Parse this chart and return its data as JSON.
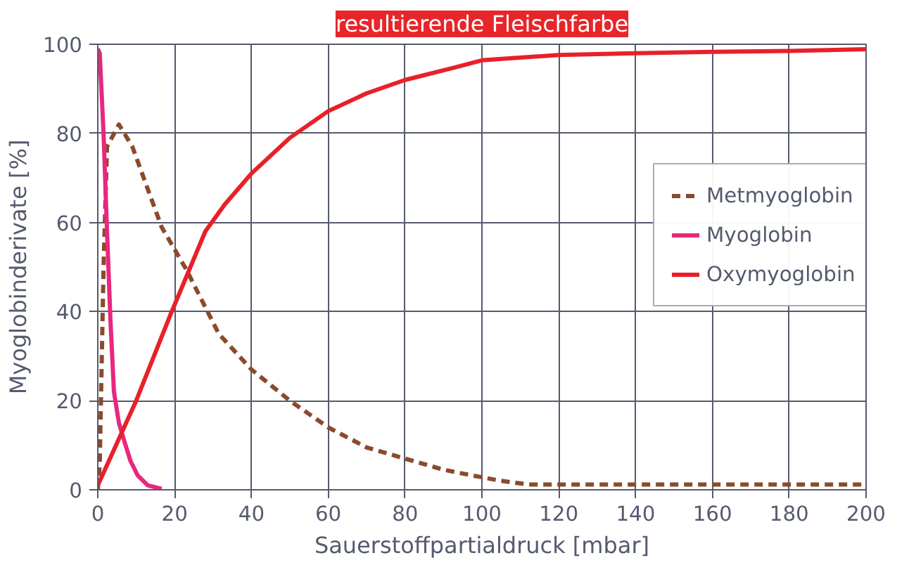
{
  "chart_data": {
    "type": "line",
    "title": "resultierende Fleischfarbe",
    "xlabel": "Sauerstoffpartialdruck [mbar]",
    "ylabel": "Myoglobinderivate [%]",
    "xlim": [
      0,
      200
    ],
    "ylim": [
      0,
      100
    ],
    "xticks": [
      0,
      20,
      40,
      60,
      80,
      100,
      120,
      140,
      160,
      180,
      200
    ],
    "yticks": [
      0,
      20,
      40,
      60,
      80,
      100
    ],
    "grid": true,
    "legend": "right",
    "series": [
      {
        "name": "Metmyoglobin",
        "color": "#8b4a2b",
        "line_style": "dashed",
        "x": [
          0,
          0.5,
          1.5,
          2.4,
          5.5,
          9,
          16.6,
          23,
          31.5,
          40,
          50,
          60,
          70,
          80,
          90,
          97,
          105,
          112,
          130,
          160,
          200
        ],
        "values": [
          0,
          5.6,
          50,
          77,
          82,
          77,
          59,
          49.5,
          35,
          27,
          20,
          14,
          9.5,
          7,
          4.5,
          3.3,
          2,
          1.2,
          1.2,
          1.2,
          1.2
        ]
      },
      {
        "name": "Myoglobin",
        "color": "#e8287f",
        "line_style": "solid",
        "x": [
          0,
          0.5,
          1.5,
          2.4,
          3.3,
          4.2,
          5.5,
          6.7,
          8.5,
          10.4,
          13,
          16.6
        ],
        "values": [
          99,
          98,
          80,
          58,
          38,
          22,
          15,
          11.5,
          6.5,
          3.2,
          1,
          0.2
        ]
      },
      {
        "name": "Oxymyoglobin",
        "color": "#e8202a",
        "line_style": "solid",
        "x": [
          0,
          10,
          19,
          28,
          33,
          40,
          50,
          60,
          70,
          80,
          92.5,
          100,
          120,
          140,
          160,
          180,
          200
        ],
        "values": [
          1,
          20,
          39.5,
          58,
          64,
          71,
          79,
          85,
          89,
          92,
          94.7,
          96.4,
          97.6,
          98,
          98.3,
          98.5,
          98.9
        ]
      }
    ]
  }
}
